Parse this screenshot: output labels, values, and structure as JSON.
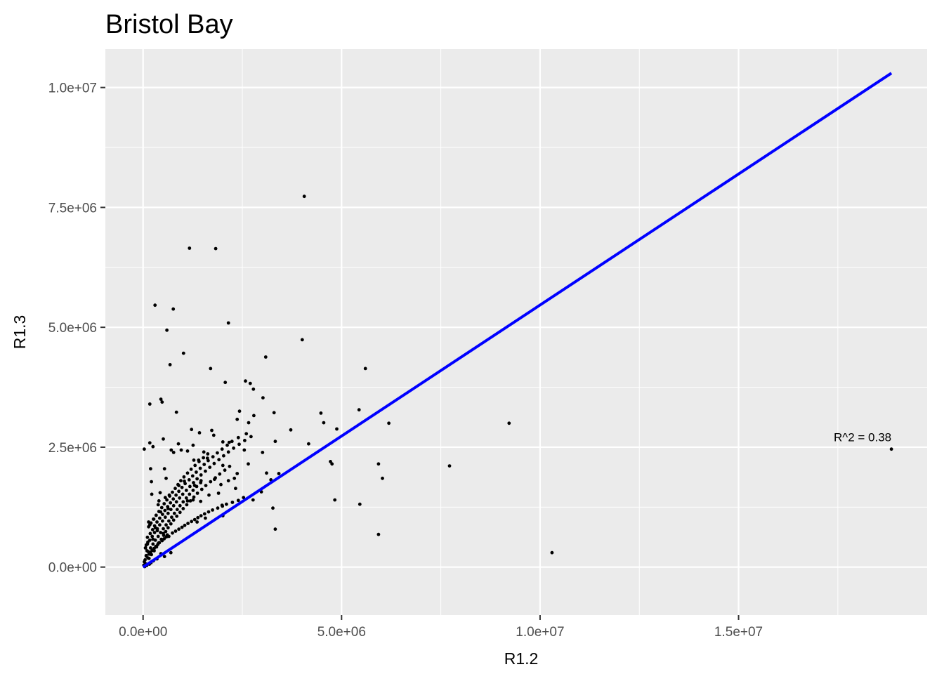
{
  "chart_data": {
    "type": "scatter",
    "title": "Bristol Bay",
    "xlabel": "R1.2",
    "ylabel": "R1.3",
    "xlim": [
      -950000,
      19750000
    ],
    "ylim": [
      -1000000,
      10800000
    ],
    "x_major_ticks": [
      0,
      5000000,
      10000000,
      15000000
    ],
    "x_tick_labels": [
      "0.0e+00",
      "5.0e+06",
      "1.0e+07",
      "1.5e+07"
    ],
    "x_minor_ticks": [
      2500000,
      7500000,
      12500000,
      17500000
    ],
    "y_major_ticks": [
      0,
      2500000,
      5000000,
      7500000,
      10000000
    ],
    "y_tick_labels": [
      "0.0e+00",
      "2.5e+06",
      "5.0e+06",
      "7.5e+06",
      "1.0e+07"
    ],
    "y_minor_ticks": [
      1250000,
      3750000,
      6250000,
      8750000
    ],
    "grid": true,
    "panel_background": "#ebebeb",
    "grid_color": "#ffffff",
    "point_color": "#000000",
    "fit_line_color": "#0000ff",
    "fit_line": {
      "x": [
        0,
        18850000
      ],
      "y": [
        0,
        10300000
      ]
    },
    "annotation": {
      "text": "R^2 = 0.38",
      "x": 18850000,
      "y": 2620000
    },
    "points": {
      "x": [
        4060000,
        1170000,
        1830000,
        300000,
        760000,
        2150000,
        1020000,
        4010000,
        600000,
        3090000,
        680000,
        1700000,
        5600000,
        2070000,
        2580000,
        2700000,
        2780000,
        450000,
        3020000,
        170000,
        480000,
        840000,
        2430000,
        2790000,
        4480000,
        3300000,
        2370000,
        5440000,
        2660000,
        4550000,
        6190000,
        9220000,
        1730000,
        4880000,
        3720000,
        1220000,
        1420000,
        510000,
        1780000,
        2010000,
        2170000,
        4170000,
        170000,
        250000,
        890000,
        1260000,
        3330000,
        960000,
        1530000,
        1120000,
        710000,
        770000,
        2550000,
        30000,
        3010000,
        1280000,
        1620000,
        4720000,
        4760000,
        7720000,
        5930000,
        540000,
        2650000,
        2010000,
        190000,
        2370000,
        3420000,
        6030000,
        1460000,
        2300000,
        3110000,
        1040000,
        4830000,
        5460000,
        1900000,
        3220000,
        1800000,
        1300000,
        1660000,
        1260000,
        1450000,
        2530000,
        3270000,
        1120000,
        5930000,
        10300000,
        18850000,
        1570000,
        2010000,
        2980000,
        1360000,
        3330000,
        2330000,
        1990000,
        2770000,
        2150000,
        900000,
        1400000,
        580000,
        660000,
        1960000,
        210000,
        220000,
        430000,
        560000,
        400000,
        380000,
        630000,
        440000,
        330000,
        270000,
        140000,
        170000,
        310000,
        360000,
        510000,
        650000,
        250000,
        120000,
        80000,
        60000,
        100000,
        450000,
        700000,
        540000,
        350000,
        260000,
        200000,
        160000,
        90000,
        40000,
        20000,
        60000,
        30000,
        50000,
        120000,
        80000,
        150000,
        190000,
        230000,
        280000,
        320000,
        370000,
        410000,
        480000,
        530000,
        590000,
        610000,
        740000,
        820000,
        900000,
        980000,
        1050000,
        1130000,
        1220000,
        1300000,
        1380000,
        1460000,
        1550000,
        1650000,
        1750000,
        1880000,
        2000000,
        2100000,
        2250000,
        2400000,
        150000,
        210000,
        280000,
        340000,
        390000,
        460000,
        520000,
        570000,
        630000,
        700000,
        770000,
        850000,
        930000,
        1010000,
        1100000,
        1190000,
        1280000,
        1370000,
        1480000,
        1580000,
        1700000,
        1820000,
        1930000,
        2060000,
        2180000,
        110000,
        180000,
        240000,
        290000,
        350000,
        420000,
        490000,
        550000,
        620000,
        690000,
        760000,
        830000,
        900000,
        980000,
        1060000,
        1160000,
        1250000,
        1340000,
        1440000,
        1540000,
        1640000,
        1760000,
        1870000,
        1990000,
        2120000,
        2240000,
        2400000,
        2600000,
        140000,
        200000,
        260000,
        330000,
        400000,
        470000,
        530000,
        600000,
        670000,
        740000,
        810000,
        880000,
        950000,
        1030000,
        1120000,
        1210000,
        1310000,
        1410000,
        1520000,
        1630000,
        60000,
        110000,
        170000,
        230000,
        290000,
        360000,
        420000,
        490000,
        560000,
        630000,
        700000,
        770000,
        840000,
        920000,
        1000000,
        1090000,
        1180000,
        1270000,
        1360000,
        1460000,
        1570000,
        1680000,
        1790000,
        1910000,
        2030000,
        2150000,
        2280000,
        2420000,
        2560000,
        2720000,
        80000,
        130000,
        190000,
        250000,
        310000,
        380000,
        440000,
        510000,
        580000,
        650000,
        720000,
        790000,
        860000,
        930000,
        1010000,
        1090000,
        1170000,
        1260000,
        1350000,
        1450000
      ],
      "y": [
        7730000,
        6650000,
        6640000,
        5460000,
        5380000,
        5090000,
        4460000,
        4740000,
        4940000,
        4380000,
        4220000,
        4140000,
        4140000,
        3850000,
        3880000,
        3830000,
        3710000,
        3500000,
        3530000,
        3400000,
        3440000,
        3230000,
        3250000,
        3160000,
        3210000,
        3220000,
        3080000,
        3280000,
        3010000,
        3010000,
        3000000,
        3000000,
        2850000,
        2880000,
        2860000,
        2870000,
        2800000,
        2670000,
        2750000,
        2610000,
        2600000,
        2570000,
        2590000,
        2510000,
        2570000,
        2540000,
        2620000,
        2440000,
        2400000,
        2420000,
        2440000,
        2390000,
        2440000,
        2460000,
        2390000,
        2230000,
        2270000,
        2200000,
        2150000,
        2110000,
        2150000,
        2050000,
        2150000,
        2120000,
        2050000,
        1950000,
        1950000,
        1850000,
        1800000,
        1850000,
        1960000,
        1790000,
        1400000,
        1310000,
        1540000,
        1820000,
        1830000,
        1700000,
        1500000,
        1400000,
        1370000,
        1450000,
        1230000,
        1380000,
        680000,
        300000,
        2460000,
        1020000,
        1070000,
        1570000,
        940000,
        790000,
        1640000,
        1290000,
        1400000,
        1800000,
        1700000,
        2230000,
        1850000,
        1500000,
        1720000,
        1780000,
        1520000,
        1550000,
        1450000,
        1380000,
        1300000,
        1220000,
        1150000,
        1080000,
        1000000,
        940000,
        880000,
        820000,
        760000,
        700000,
        640000,
        580000,
        520000,
        460000,
        400000,
        340000,
        280000,
        300000,
        220000,
        170000,
        130000,
        90000,
        60000,
        30000,
        10000,
        40000,
        70000,
        110000,
        150000,
        190000,
        230000,
        270000,
        310000,
        350000,
        390000,
        430000,
        470000,
        510000,
        550000,
        590000,
        630000,
        670000,
        710000,
        750000,
        790000,
        830000,
        870000,
        910000,
        950000,
        990000,
        1030000,
        1070000,
        1110000,
        1150000,
        1190000,
        1230000,
        1270000,
        1310000,
        1350000,
        1390000,
        180000,
        260000,
        340000,
        420000,
        500000,
        580000,
        660000,
        740000,
        820000,
        900000,
        980000,
        1060000,
        1140000,
        1220000,
        1300000,
        1380000,
        1460000,
        1540000,
        1620000,
        1700000,
        1780000,
        1860000,
        1940000,
        2020000,
        2100000,
        620000,
        700000,
        780000,
        860000,
        940000,
        1020000,
        1100000,
        1180000,
        1260000,
        1340000,
        1420000,
        1500000,
        1580000,
        1660000,
        1740000,
        1820000,
        1900000,
        1980000,
        2060000,
        2140000,
        2220000,
        2300000,
        2380000,
        2460000,
        2540000,
        2620000,
        2700000,
        2780000,
        840000,
        920000,
        1000000,
        1080000,
        1160000,
        1240000,
        1320000,
        1400000,
        1480000,
        1560000,
        1640000,
        1720000,
        1800000,
        1880000,
        1960000,
        2040000,
        2120000,
        2200000,
        2280000,
        2360000,
        400000,
        480000,
        560000,
        640000,
        720000,
        800000,
        880000,
        960000,
        1040000,
        1120000,
        1200000,
        1280000,
        1360000,
        1440000,
        1520000,
        1600000,
        1680000,
        1760000,
        1840000,
        1920000,
        2000000,
        2080000,
        2160000,
        2240000,
        2320000,
        2400000,
        2480000,
        2560000,
        2640000,
        2720000,
        240000,
        320000,
        400000,
        480000,
        560000,
        640000,
        720000,
        800000,
        880000,
        960000,
        1040000,
        1120000,
        1200000,
        1280000,
        1360000,
        1440000,
        1520000,
        1600000,
        1680000,
        1760000
      ]
    }
  }
}
